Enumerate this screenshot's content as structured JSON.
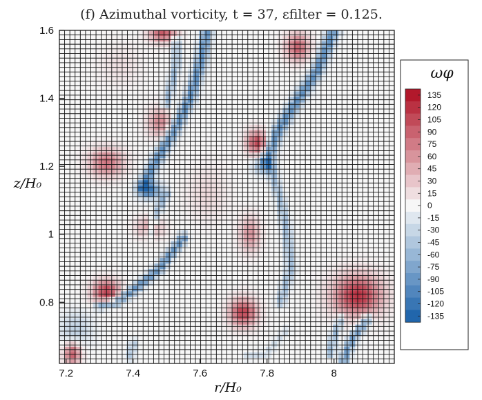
{
  "chart_data": {
    "type": "heatmap",
    "title": "(f) Azimuthal vorticity, t = 37, εfilter = 0.125.",
    "xlabel": "r/H₀",
    "ylabel": "z/H₀",
    "xlim": [
      7.18,
      8.18
    ],
    "ylim": [
      0.62,
      1.6
    ],
    "x_ticks": [
      7.2,
      7.4,
      7.6,
      7.8,
      8.0
    ],
    "x_tick_labels": [
      "7.2",
      "7.4",
      "7.6",
      "7.8",
      "8"
    ],
    "y_ticks": [
      0.8,
      1.0,
      1.2,
      1.4,
      1.6
    ],
    "y_tick_labels": [
      "0.8",
      "1",
      "1.2",
      "1.4",
      "1.6"
    ],
    "grid": true,
    "legend": {
      "title": "ωφ",
      "placement": "right",
      "levels": [
        135,
        120,
        105,
        90,
        75,
        60,
        45,
        30,
        15,
        0,
        -15,
        -30,
        -45,
        -60,
        -75,
        -90,
        -105,
        -120,
        -135
      ],
      "level_labels": [
        "135",
        "120",
        "105",
        "90",
        "75",
        "60",
        "45",
        "30",
        "15",
        "0",
        "-15",
        "-30",
        "-45",
        "-60",
        "-75",
        "-90",
        "-105",
        "-120",
        "-135"
      ]
    },
    "colors": {
      "max": "#b2182b",
      "mid": "#f7f7f7",
      "min": "#2166ac"
    },
    "features": [
      {
        "kind": "blob",
        "r": 7.49,
        "z": 1.59,
        "sr": 0.04,
        "sz": 0.025,
        "value": 95
      },
      {
        "kind": "blob",
        "r": 7.89,
        "z": 1.55,
        "sr": 0.035,
        "sz": 0.04,
        "value": 90
      },
      {
        "kind": "blob",
        "r": 7.32,
        "z": 1.21,
        "sr": 0.05,
        "sz": 0.04,
        "value": 80
      },
      {
        "kind": "blob",
        "r": 7.48,
        "z": 1.33,
        "sr": 0.035,
        "sz": 0.04,
        "value": 65
      },
      {
        "kind": "blob",
        "r": 7.45,
        "z": 1.02,
        "sr": 0.04,
        "sz": 0.03,
        "value": 55
      },
      {
        "kind": "blob",
        "r": 7.77,
        "z": 1.27,
        "sr": 0.03,
        "sz": 0.035,
        "value": 105
      },
      {
        "kind": "blob",
        "r": 7.75,
        "z": 1.0,
        "sr": 0.03,
        "sz": 0.05,
        "value": 60
      },
      {
        "kind": "blob",
        "r": 7.32,
        "z": 0.83,
        "sr": 0.04,
        "sz": 0.035,
        "value": 110
      },
      {
        "kind": "blob",
        "r": 7.73,
        "z": 0.77,
        "sr": 0.04,
        "sz": 0.04,
        "value": 110
      },
      {
        "kind": "blob",
        "r": 8.07,
        "z": 0.82,
        "sr": 0.07,
        "sz": 0.06,
        "value": 120
      },
      {
        "kind": "blob",
        "r": 7.22,
        "z": 0.65,
        "sr": 0.025,
        "sz": 0.03,
        "value": 95
      },
      {
        "kind": "blob",
        "r": 7.62,
        "z": 1.12,
        "sr": 0.06,
        "sz": 0.08,
        "value": 18
      },
      {
        "kind": "blob",
        "r": 7.36,
        "z": 1.5,
        "sr": 0.06,
        "sz": 0.06,
        "value": 15
      },
      {
        "kind": "blob",
        "r": 7.45,
        "z": 1.13,
        "sr": 0.035,
        "sz": 0.025,
        "value": -110
      },
      {
        "kind": "blob",
        "r": 7.79,
        "z": 1.2,
        "sr": 0.03,
        "sz": 0.025,
        "value": -70
      },
      {
        "kind": "blob",
        "r": 7.23,
        "z": 0.72,
        "sr": 0.05,
        "sz": 0.05,
        "value": -35
      },
      {
        "kind": "band",
        "pts": [
          [
            8.0,
            1.6
          ],
          [
            7.95,
            1.48
          ],
          [
            7.88,
            1.38
          ],
          [
            7.83,
            1.3
          ],
          [
            7.8,
            1.22
          ]
        ],
        "width": 0.018,
        "value": -95
      },
      {
        "kind": "band",
        "pts": [
          [
            7.62,
            1.6
          ],
          [
            7.6,
            1.5
          ],
          [
            7.57,
            1.4
          ],
          [
            7.52,
            1.3
          ],
          [
            7.46,
            1.2
          ],
          [
            7.43,
            1.14
          ]
        ],
        "width": 0.017,
        "value": -95
      },
      {
        "kind": "band",
        "pts": [
          [
            7.53,
            1.57
          ],
          [
            7.53,
            1.5
          ],
          [
            7.51,
            1.42
          ],
          [
            7.5,
            1.38
          ]
        ],
        "width": 0.012,
        "value": -60
      },
      {
        "kind": "band",
        "pts": [
          [
            7.55,
            0.99
          ],
          [
            7.48,
            0.9
          ],
          [
            7.42,
            0.85
          ],
          [
            7.35,
            0.8
          ],
          [
            7.3,
            0.79
          ]
        ],
        "width": 0.014,
        "value": -90
      },
      {
        "kind": "band",
        "pts": [
          [
            7.5,
            1.12
          ],
          [
            7.47,
            1.06
          ],
          [
            7.45,
            1.0
          ]
        ],
        "width": 0.012,
        "value": -55
      },
      {
        "kind": "band",
        "pts": [
          [
            7.81,
            1.2
          ],
          [
            7.84,
            1.1
          ],
          [
            7.86,
            1.0
          ],
          [
            7.87,
            0.9
          ],
          [
            7.84,
            0.8
          ]
        ],
        "width": 0.014,
        "value": -55
      },
      {
        "kind": "band",
        "pts": [
          [
            7.86,
            0.72
          ],
          [
            7.8,
            0.65
          ],
          [
            7.74,
            0.64
          ]
        ],
        "width": 0.01,
        "value": -25
      },
      {
        "kind": "band",
        "pts": [
          [
            8.1,
            0.75
          ],
          [
            8.06,
            0.7
          ],
          [
            8.04,
            0.66
          ],
          [
            8.03,
            0.63
          ]
        ],
        "width": 0.014,
        "value": -85
      },
      {
        "kind": "band",
        "pts": [
          [
            8.02,
            0.75
          ],
          [
            8.0,
            0.7
          ],
          [
            7.99,
            0.65
          ]
        ],
        "width": 0.012,
        "value": -60
      },
      {
        "kind": "band",
        "pts": [
          [
            7.4,
            0.68
          ],
          [
            7.39,
            0.64
          ]
        ],
        "width": 0.012,
        "value": -45
      }
    ]
  }
}
